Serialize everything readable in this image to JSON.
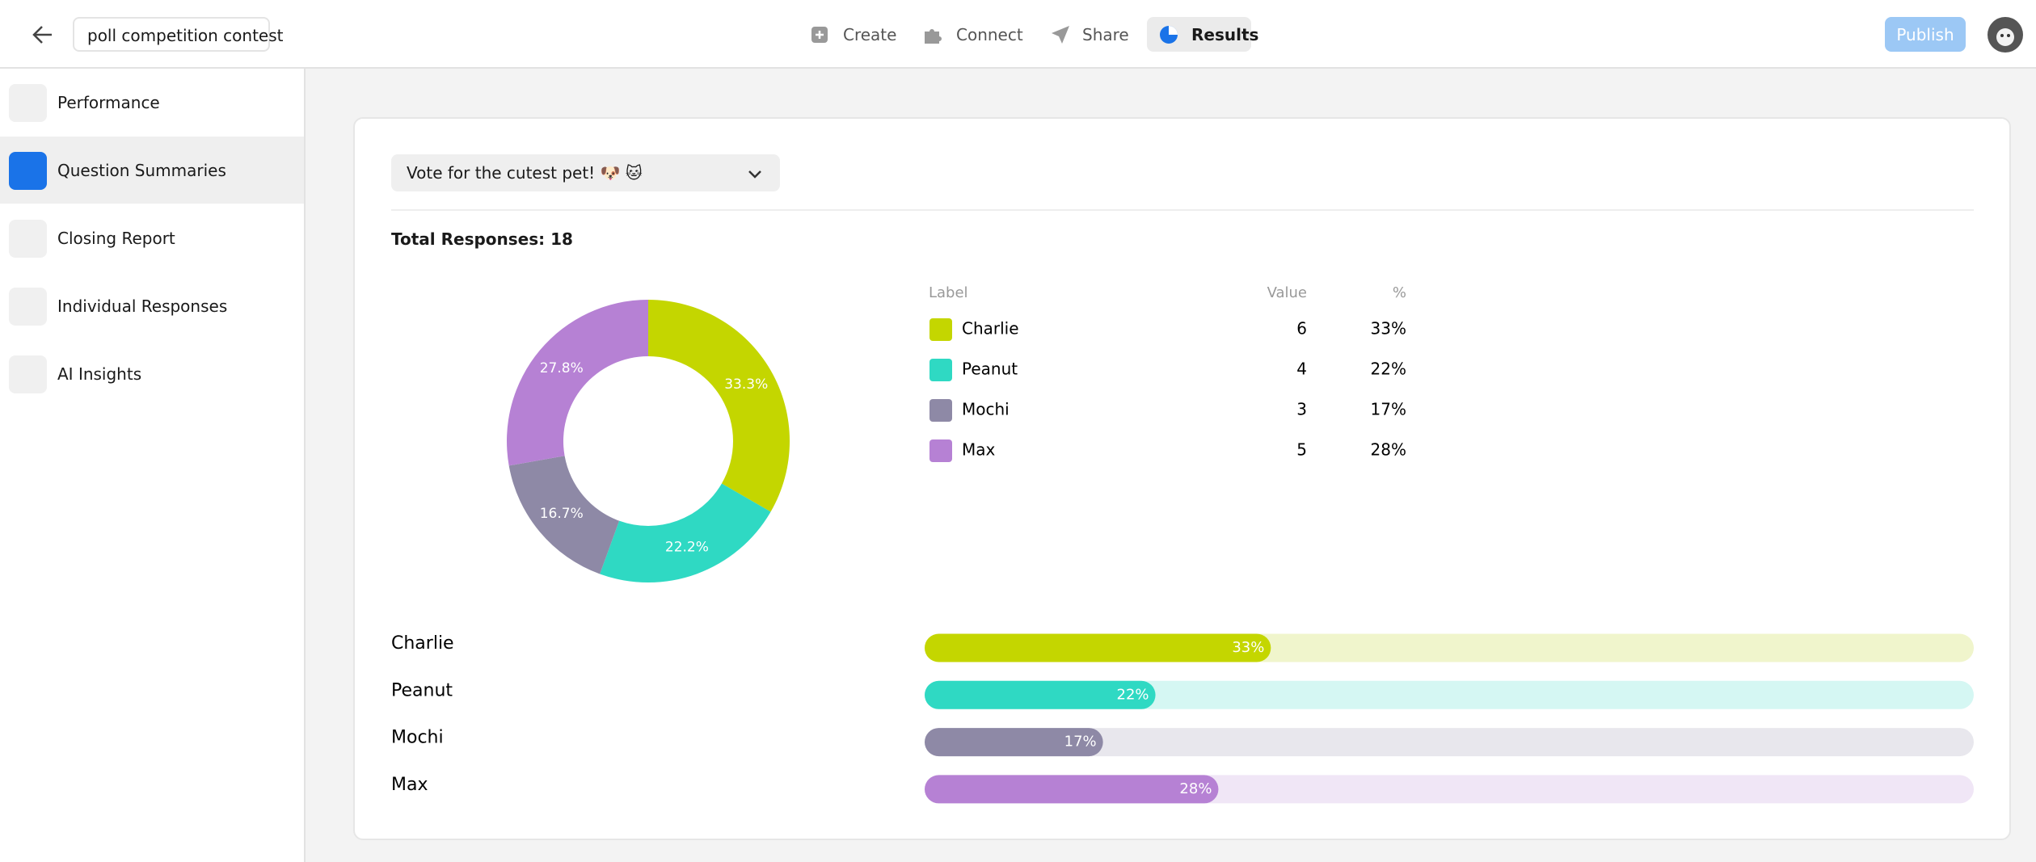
{
  "header": {
    "title": "poll competition contest",
    "tabs": [
      "Create",
      "Connect",
      "Share",
      "Results"
    ],
    "publish": "Publish"
  },
  "sidebar": {
    "items": [
      "Performance",
      "Question Summaries",
      "Closing Report",
      "Individual Responses",
      "AI Insights"
    ]
  },
  "question": "Vote for the cutest pet! 🐶 🐱",
  "total": "Total Responses: 18",
  "table": {
    "header": [
      "Label",
      "Value",
      "%"
    ],
    "rows": [
      [
        "Charlie",
        6,
        "33%"
      ],
      [
        "Peanut",
        4,
        "22%"
      ],
      [
        "Mochi",
        3,
        "17%"
      ],
      [
        "Max",
        5,
        "28%"
      ]
    ]
  },
  "chart_data": [
    {
      "type": "donut",
      "categories": [
        "Charlie",
        "Peanut",
        "Mochi",
        "Max"
      ],
      "values": [
        6,
        4,
        3,
        5
      ],
      "colors": [
        "#c4d600",
        "#2fd9c3",
        "#8e89a6",
        "#b681d4"
      ],
      "percent_labels": [
        "33.3%",
        "22.2%",
        "16.7%",
        "27.8%"
      ]
    },
    {
      "type": "hbar",
      "categories": [
        "Charlie",
        "Peanut",
        "Mochi",
        "Max"
      ],
      "values": [
        33,
        22,
        17,
        28
      ],
      "value_labels": [
        "33%",
        "22%",
        "17%",
        "28%"
      ],
      "xlim": [
        0,
        100
      ],
      "colors": [
        "#c4d600",
        "#2fd9c3",
        "#8e89a6",
        "#b681d4"
      ],
      "track_colors": [
        "#f0f5cc",
        "#d5f7f3",
        "#e8e7ed",
        "#f0e6f6"
      ]
    }
  ]
}
